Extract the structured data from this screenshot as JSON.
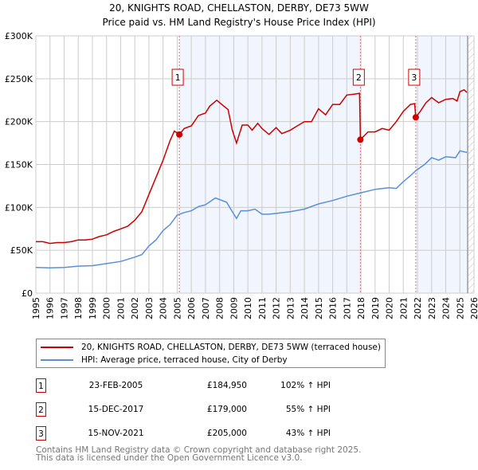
{
  "chart_data": {
    "type": "line",
    "title": "20, KNIGHTS ROAD, CHELLASTON, DERBY, DE73 5WW",
    "subtitle": "Price paid vs. HM Land Registry's House Price Index (HPI)",
    "xlim": [
      1995,
      2026
    ],
    "ylim": [
      0,
      300000
    ],
    "x_ticks": [
      "1995",
      "1996",
      "1997",
      "1998",
      "1999",
      "2000",
      "2001",
      "2002",
      "2003",
      "2004",
      "2005",
      "2006",
      "2007",
      "2008",
      "2009",
      "2010",
      "2011",
      "2012",
      "2013",
      "2014",
      "2015",
      "2016",
      "2017",
      "2018",
      "2019",
      "2020",
      "2021",
      "2022",
      "2023",
      "2024",
      "2025",
      "2026"
    ],
    "y_ticks": [
      {
        "v": 0,
        "label": "£0"
      },
      {
        "v": 50000,
        "label": "£50K"
      },
      {
        "v": 100000,
        "label": "£100K"
      },
      {
        "v": 150000,
        "label": "£150K"
      },
      {
        "v": 200000,
        "label": "£200K"
      },
      {
        "v": 250000,
        "label": "£250K"
      },
      {
        "v": 300000,
        "label": "£300K"
      }
    ],
    "grid": true,
    "shaded_ranges": [
      [
        2005.15,
        2017.96
      ],
      [
        2021.88,
        2025.55
      ]
    ],
    "forecast_from": 2025.55,
    "series": [
      {
        "name": "20, KNIGHTS ROAD, CHELLASTON, DERBY, DE73 5WW (terraced house)",
        "color": "#cc0000",
        "x": [
          1995,
          1995.5,
          1996,
          1996.5,
          1997,
          1997.5,
          1998,
          1998.5,
          1999,
          1999.5,
          2000,
          2000.5,
          2001,
          2001.5,
          2002,
          2002.5,
          2003,
          2003.5,
          2004,
          2004.5,
          2004.8,
          2005.15,
          2005.5,
          2006,
          2006.5,
          2007,
          2007.3,
          2007.8,
          2008.3,
          2008.6,
          2008.9,
          2009.2,
          2009.6,
          2010,
          2010.3,
          2010.7,
          2011,
          2011.5,
          2012,
          2012.4,
          2013,
          2013.5,
          2014,
          2014.5,
          2015,
          2015.5,
          2016,
          2016.5,
          2017,
          2017.5,
          2017.9,
          2017.96,
          2018.5,
          2019,
          2019.5,
          2020,
          2020.5,
          2021,
          2021.5,
          2021.8,
          2021.88,
          2022.2,
          2022.6,
          2023,
          2023.5,
          2024,
          2024.5,
          2024.8,
          2025,
          2025.3,
          2025.5
        ],
        "y": [
          60000,
          60000,
          58000,
          59000,
          59000,
          60000,
          62000,
          62000,
          63000,
          66000,
          68000,
          72000,
          75000,
          78000,
          85000,
          95000,
          115000,
          135000,
          155000,
          178000,
          189000,
          184950,
          192000,
          195000,
          207000,
          210000,
          218000,
          225000,
          218000,
          214000,
          190000,
          175000,
          196000,
          196000,
          190000,
          198000,
          192000,
          185000,
          193000,
          186000,
          190000,
          195000,
          200000,
          200000,
          215000,
          208000,
          220000,
          220000,
          231000,
          232000,
          233000,
          179000,
          188000,
          188000,
          192000,
          190000,
          200000,
          212000,
          220000,
          221000,
          205000,
          212000,
          222000,
          228000,
          222000,
          226000,
          227000,
          224000,
          235000,
          237000,
          234000
        ]
      },
      {
        "name": "HPI: Average price, terraced house, City of Derby",
        "color": "#5b8fd6",
        "x": [
          1995,
          1996,
          1997,
          1998,
          1999,
          2000,
          2001,
          2002,
          2002.5,
          2003,
          2003.5,
          2004,
          2004.5,
          2005,
          2005.5,
          2006,
          2006.5,
          2007,
          2007.7,
          2008.5,
          2008.9,
          2009.2,
          2009.5,
          2010,
          2010.5,
          2011,
          2011.5,
          2012,
          2013,
          2014,
          2015,
          2016,
          2017,
          2018,
          2019,
          2020,
          2020.5,
          2021,
          2021.5,
          2021.9,
          2022.5,
          2023,
          2023.5,
          2024,
          2024.7,
          2025,
          2025.5
        ],
        "y": [
          30000,
          29500,
          30000,
          31500,
          32000,
          34500,
          37000,
          42000,
          45000,
          55000,
          62000,
          73000,
          80000,
          91000,
          94000,
          96000,
          101000,
          103000,
          111000,
          106000,
          95000,
          87000,
          96000,
          96000,
          98000,
          92000,
          92000,
          93000,
          95000,
          98000,
          104000,
          108000,
          113000,
          117000,
          121000,
          123000,
          122000,
          130000,
          137000,
          143000,
          150000,
          158000,
          155000,
          159000,
          158000,
          166000,
          164000
        ]
      }
    ],
    "annotations": [
      {
        "label": "1",
        "x": 2005.15,
        "y": 184950
      },
      {
        "label": "2",
        "x": 2017.96,
        "y": 179000
      },
      {
        "label": "3",
        "x": 2021.88,
        "y": 205000
      }
    ]
  },
  "legend": {
    "item1": "20, KNIGHTS ROAD, CHELLASTON, DERBY, DE73 5WW (terraced house)",
    "item2": "HPI: Average price, terraced house, City of Derby"
  },
  "sales": [
    {
      "num": "1",
      "date": "23-FEB-2005",
      "price": "£184,950",
      "hpi": "102% ↑ HPI"
    },
    {
      "num": "2",
      "date": "15-DEC-2017",
      "price": "£179,000",
      "hpi": "55% ↑ HPI"
    },
    {
      "num": "3",
      "date": "15-NOV-2021",
      "price": "£205,000",
      "hpi": "43% ↑ HPI"
    }
  ],
  "footer": {
    "line1": "Contains HM Land Registry data © Crown copyright and database right 2025.",
    "line2": "This data is licensed under the Open Government Licence v3.0."
  }
}
